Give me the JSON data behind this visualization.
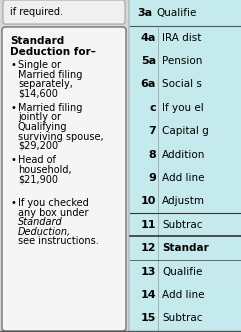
{
  "bg_color": "#c5eaed",
  "gray_panel_color": "#d8d8d8",
  "white_box_color": "#f5f5f5",
  "top_text": "if required.",
  "top_row_label": "3a",
  "top_row_text": "Qualifie",
  "standard_title_line1": "Standard",
  "standard_title_line2": "Deduction for–",
  "bullets": [
    [
      "Single or",
      "Married filing",
      "separately,",
      "$14,600"
    ],
    [
      "Married filing",
      "jointly or",
      "Qualifying",
      "surviving spouse,",
      "$29,200"
    ],
    [
      "Head of",
      "household,",
      "$21,900"
    ],
    [
      "If you checked",
      "any box under",
      "Standard",
      "Deduction,",
      "see instructions."
    ]
  ],
  "bullet_italic_lines": [
    2,
    3
  ],
  "rows": [
    {
      "label": "4a",
      "text": "IRA dist",
      "bold": false,
      "line_above": false
    },
    {
      "label": "5a",
      "text": "Pension",
      "bold": false,
      "line_above": false
    },
    {
      "label": "6a",
      "text": "Social s",
      "bold": false,
      "line_above": false
    },
    {
      "label": "c",
      "text": "If you el",
      "bold": false,
      "line_above": false
    },
    {
      "label": "7",
      "text": "Capital g",
      "bold": false,
      "line_above": false
    },
    {
      "label": "8",
      "text": "Addition",
      "bold": false,
      "line_above": false
    },
    {
      "label": "9",
      "text": "Add line",
      "bold": false,
      "line_above": false
    },
    {
      "label": "10",
      "text": "Adjustm",
      "bold": false,
      "line_above": false
    },
    {
      "label": "11",
      "text": "Subtrac",
      "bold": false,
      "line_above": false
    },
    {
      "label": "12",
      "text": "Standar",
      "bold": true,
      "line_above": true
    },
    {
      "label": "13",
      "text": "Qualifie",
      "bold": false,
      "line_above": false
    },
    {
      "label": "14",
      "text": "Add line",
      "bold": false,
      "line_above": false
    },
    {
      "label": "15",
      "text": "Subtrac",
      "bold": false,
      "line_above": false
    }
  ],
  "figsize": [
    2.41,
    3.32
  ],
  "dpi": 100
}
